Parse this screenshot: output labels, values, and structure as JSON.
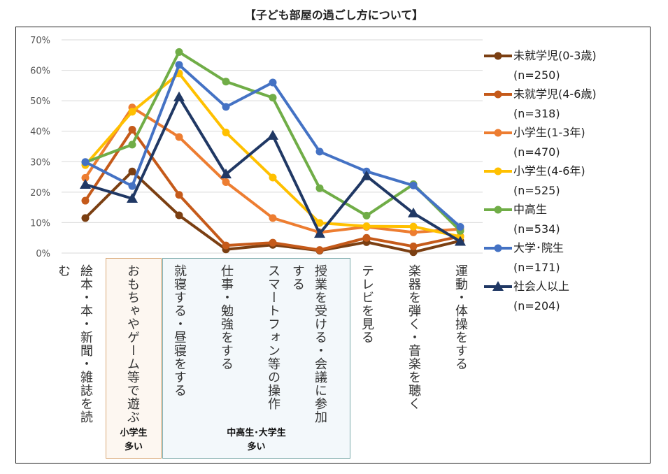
{
  "chart_data": {
    "type": "line",
    "title": "【子ども部屋の過ごし方について】",
    "categories": [
      "絵本・本・新聞・雑誌を読む",
      "おもちゃやゲーム等で遊ぶ",
      "就寝する・昼寝をする",
      "仕事・勉強をする",
      "スマートフォン等の操作",
      "授業を受ける・会議に参加する",
      "テレビを見る",
      "楽器を弾く・音楽を聴く",
      "運動・体操をする"
    ],
    "yticks": [
      "0%",
      "10%",
      "20%",
      "30%",
      "40%",
      "50%",
      "60%",
      "70%"
    ],
    "ylim": [
      0,
      70
    ],
    "grid": true,
    "legend_position": "right",
    "series": [
      {
        "name": "未就学児(0-3歳)",
        "n": "(n=250)",
        "color": "#7B3F12",
        "marker": "circle",
        "values": [
          11.5,
          26.8,
          12.4,
          1.2,
          2.7,
          0.8,
          3.6,
          0.3,
          4.0
        ]
      },
      {
        "name": "未就学児(4-6歳)",
        "n": "(n=318)",
        "color": "#C55A1A",
        "marker": "circle",
        "values": [
          17.2,
          40.5,
          19.1,
          2.5,
          3.4,
          1.0,
          5.0,
          2.2,
          5.5
        ]
      },
      {
        "name": "小学生(1-3年)",
        "n": "(n=470)",
        "color": "#ED7D31",
        "marker": "circle",
        "values": [
          24.7,
          47.8,
          38.1,
          23.3,
          11.5,
          6.8,
          8.6,
          6.8,
          7.9
        ]
      },
      {
        "name": "小学生(4-6年)",
        "n": "(n=525)",
        "color": "#FFC000",
        "marker": "circle",
        "values": [
          28.9,
          46.4,
          59.0,
          39.6,
          24.8,
          9.9,
          8.8,
          8.7,
          5.4
        ]
      },
      {
        "name": "中高生",
        "n": "(n=534)",
        "color": "#70AD47",
        "marker": "circle",
        "values": [
          29.8,
          35.6,
          66.0,
          56.3,
          51.0,
          21.3,
          12.3,
          22.6,
          7.3
        ]
      },
      {
        "name": "大学･院生",
        "n": "(n=171)",
        "color": "#4472C4",
        "marker": "circle",
        "values": [
          29.9,
          22.0,
          61.8,
          48.0,
          56.0,
          33.3,
          26.8,
          22.2,
          8.6
        ]
      },
      {
        "name": "社会人以上",
        "n": "(n=204)",
        "color": "#203864",
        "marker": "triangle",
        "values": [
          22.5,
          17.9,
          51.2,
          25.9,
          38.6,
          6.4,
          25.3,
          13.1,
          3.8
        ]
      }
    ],
    "annotations": [
      {
        "label": "小学生\n多い",
        "line1": "小学生",
        "line2": "多い"
      },
      {
        "label": "中高生･大学生\n多い",
        "line1": "中高生･大学生",
        "line2": "多い"
      }
    ]
  }
}
